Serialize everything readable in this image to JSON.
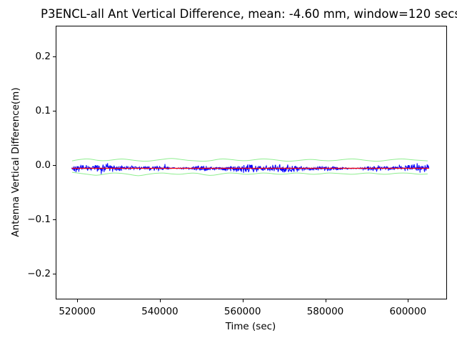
{
  "figure": {
    "background": "#ffffff",
    "text_color": "#000000"
  },
  "chart_data": {
    "type": "line",
    "title": "P3ENCL-all Ant Vertical Difference, mean: -4.60 mm, window=120 secs",
    "xlabel": "Time (sec)",
    "ylabel": "Antenna Vertical Difference(m)",
    "xlim": [
      514800,
      609100
    ],
    "ylim": [
      -0.2446,
      0.2564
    ],
    "grid": false,
    "legend_position": "none",
    "mean_mm": -4.6,
    "window_sec": 120,
    "xticks": {
      "values": [
        520000,
        540000,
        560000,
        580000,
        600000
      ],
      "labels": [
        "520000",
        "540000",
        "560000",
        "580000",
        "600000"
      ]
    },
    "yticks": {
      "values": [
        0.2,
        0.1,
        0.0,
        -0.1,
        -0.2
      ],
      "labels": [
        "0.2",
        "0.1",
        "0.0",
        "−0.1",
        "−0.2"
      ]
    },
    "series": [
      {
        "name": "antenna-vertical-difference",
        "style": "noisy-band",
        "color": "#0000ff",
        "x_start": 518500,
        "x_end": 604900,
        "mean_m": -0.0046,
        "noise_halfwidth_m": 0.0045,
        "points": 1005,
        "seed": 42
      },
      {
        "name": "rolling-mean",
        "style": "hline",
        "color": "#ff0000",
        "y": -0.0046,
        "x_start": 518500,
        "x_end": 604900
      },
      {
        "name": "upper-envelope",
        "style": "smooth-line",
        "color": "#90ee90",
        "x": [
          518600,
          520600,
          522600,
          524600,
          526600,
          528600,
          530600,
          532600,
          534600,
          536600,
          538600,
          540600,
          542600,
          544600,
          546600,
          548600,
          550600,
          552600,
          554600,
          556600,
          558600,
          560600,
          562600,
          564600,
          566600,
          568600,
          570600,
          572600,
          574600,
          576600,
          578600,
          580600,
          582600,
          584600,
          586600,
          588600,
          590600,
          592600,
          594600,
          596600,
          598600,
          600600,
          602600,
          604600
        ],
        "y": [
          0.009,
          0.012,
          0.013,
          0.01,
          0.009,
          0.011,
          0.013,
          0.011,
          0.009,
          0.008,
          0.01,
          0.012,
          0.014,
          0.012,
          0.01,
          0.009,
          0.008,
          0.01,
          0.013,
          0.012,
          0.01,
          0.009,
          0.011,
          0.013,
          0.012,
          0.01,
          0.008,
          0.009,
          0.011,
          0.012,
          0.01,
          0.009,
          0.01,
          0.012,
          0.013,
          0.011,
          0.009,
          0.008,
          0.01,
          0.012,
          0.013,
          0.011,
          0.01,
          0.009
        ]
      },
      {
        "name": "lower-envelope",
        "style": "smooth-line",
        "color": "#90ee90",
        "x": [
          518600,
          520600,
          522600,
          524600,
          526600,
          528600,
          530600,
          532600,
          534600,
          536600,
          538600,
          540600,
          542600,
          544600,
          546600,
          548600,
          550600,
          552600,
          554600,
          556600,
          558600,
          560600,
          562600,
          564600,
          566600,
          568600,
          570600,
          572600,
          574600,
          576600,
          578600,
          580600,
          582600,
          584600,
          586600,
          588600,
          590600,
          592600,
          594600,
          596600,
          598600,
          600600,
          602600,
          604600
        ],
        "y": [
          -0.012,
          -0.014,
          -0.016,
          -0.018,
          -0.015,
          -0.013,
          -0.014,
          -0.016,
          -0.019,
          -0.016,
          -0.014,
          -0.013,
          -0.015,
          -0.016,
          -0.014,
          -0.013,
          -0.017,
          -0.018,
          -0.015,
          -0.013,
          -0.014,
          -0.016,
          -0.015,
          -0.013,
          -0.014,
          -0.016,
          -0.015,
          -0.013,
          -0.014,
          -0.016,
          -0.015,
          -0.013,
          -0.014,
          -0.015,
          -0.016,
          -0.014,
          -0.013,
          -0.015,
          -0.016,
          -0.014,
          -0.013,
          -0.014,
          -0.016,
          -0.015
        ]
      }
    ]
  }
}
